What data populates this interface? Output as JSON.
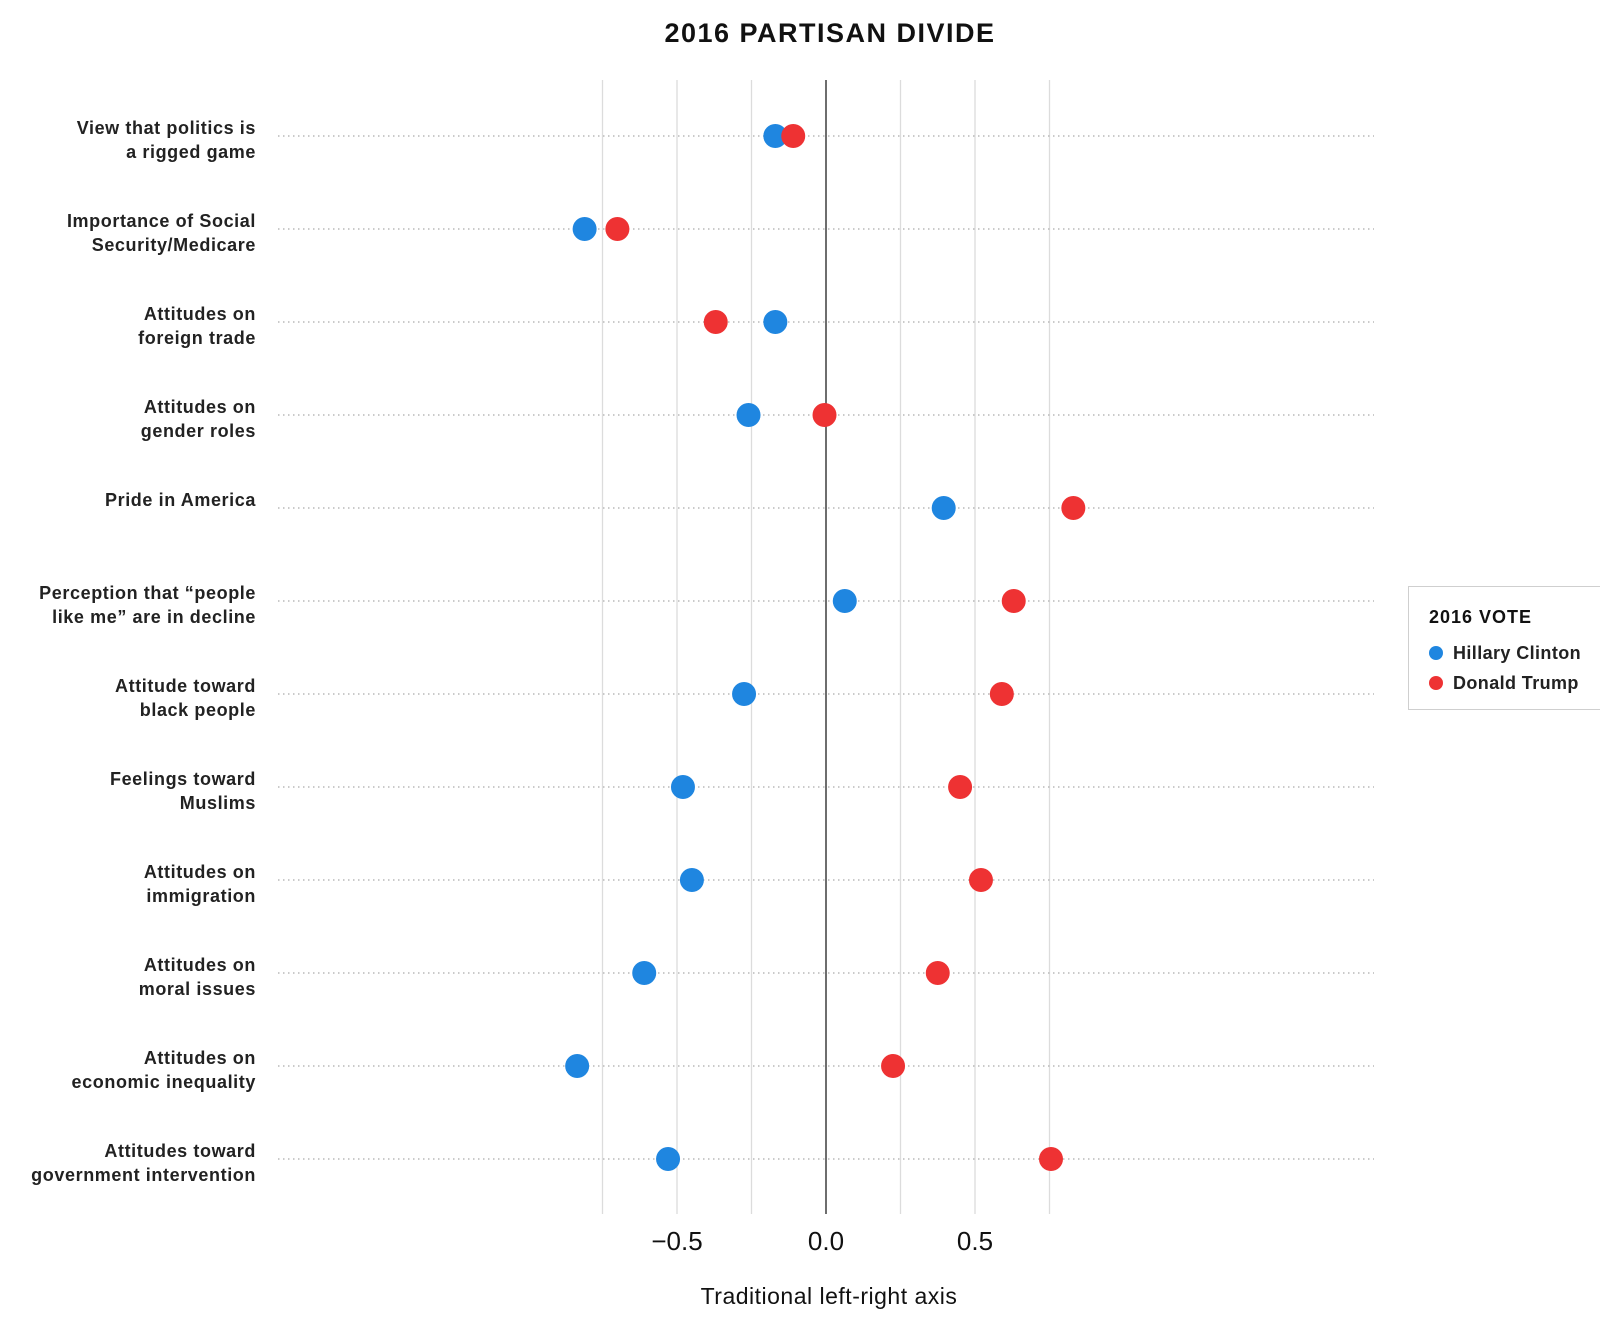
{
  "chart_data": {
    "type": "scatter",
    "title": "2016 PARTISAN DIVIDE",
    "xlabel": "Traditional left-right axis",
    "xlim": [
      -0.75,
      0.92
    ],
    "xticks": [
      -0.5,
      0.0,
      0.5
    ],
    "xtick_labels": [
      "−0.5",
      "0.0",
      "0.5"
    ],
    "gridlines_at": [
      -0.75,
      -0.5,
      -0.25,
      0.0,
      0.25,
      0.5,
      0.75
    ],
    "zero_line": true,
    "categories": [
      [
        "View that politics is",
        "a rigged game"
      ],
      [
        "Importance of Social",
        "Security/Medicare"
      ],
      [
        "Attitudes on",
        "foreign trade"
      ],
      [
        "Attitudes on",
        "gender roles"
      ],
      [
        "Pride in America"
      ],
      [
        "Perception that “people",
        "like me” are in decline"
      ],
      [
        "Attitude toward",
        "black people"
      ],
      [
        "Feelings toward",
        "Muslims"
      ],
      [
        "Attitudes on",
        "immigration"
      ],
      [
        "Attitudes on",
        "moral issues"
      ],
      [
        "Attitudes on",
        "economic inequality"
      ],
      [
        "Attitudes toward",
        "government intervention"
      ]
    ],
    "series": [
      {
        "name": "Hillary Clinton",
        "color": "#1f86e0",
        "values": [
          -0.17,
          -0.81,
          -0.17,
          -0.26,
          0.395,
          0.063,
          -0.275,
          -0.48,
          -0.45,
          -0.61,
          -0.835,
          -0.53
        ]
      },
      {
        "name": "Donald Trump",
        "color": "#ee3233",
        "values": [
          -0.11,
          -0.7,
          -0.37,
          -0.005,
          0.83,
          0.63,
          0.59,
          0.45,
          0.52,
          0.375,
          0.225,
          0.755
        ]
      }
    ],
    "legend": {
      "title": "2016 VOTE",
      "placement": "right"
    }
  }
}
